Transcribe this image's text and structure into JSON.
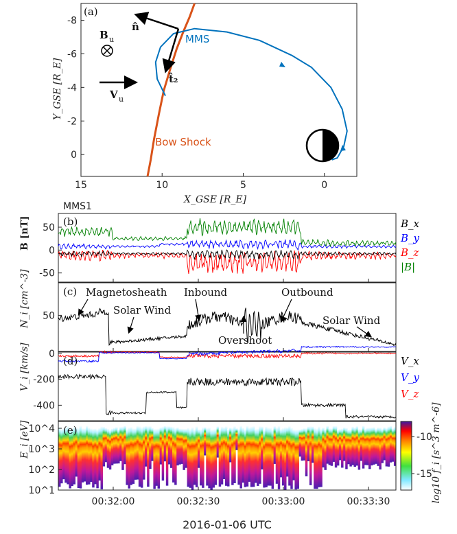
{
  "chart_data": [
    {
      "type": "line",
      "panel_label": "(a)",
      "xlabel": "X_GSE [R_E]",
      "ylabel": "Y_GSE [R_E]",
      "xlim": [
        15,
        -2
      ],
      "ylim": [
        1.3,
        -9
      ],
      "x_ticks": [
        15,
        10,
        5,
        0
      ],
      "y_ticks": [
        -8,
        -6,
        -4,
        -2,
        0
      ],
      "annotations": {
        "mms": "MMS",
        "bow_shock": "Bow Shock",
        "n_hat": "n̂",
        "t2_hat": "t̂₂",
        "bu": "B",
        "bu_sub": "u",
        "vu": "V",
        "vu_sub": "u"
      },
      "series": [
        {
          "name": "Bow Shock",
          "color": "#d95319",
          "x": [
            8.0,
            8.3,
            8.7,
            9.1,
            9.5,
            9.9,
            10.2,
            10.5,
            10.7,
            10.9
          ],
          "y": [
            -9.0,
            -8.2,
            -7.3,
            -6.3,
            -5.1,
            -3.8,
            -2.4,
            -0.9,
            0.3,
            1.3
          ]
        },
        {
          "name": "MMS",
          "color": "#0072bd",
          "x": [
            9.8,
            10.3,
            10.4,
            10.1,
            9.3,
            8.0,
            6.0,
            4.0,
            2.0,
            0.8,
            -0.4,
            -1.1,
            -1.4,
            -1.2,
            -0.8,
            -0.5,
            -0.3
          ],
          "y": [
            -3.5,
            -4.5,
            -5.5,
            -6.4,
            -7.2,
            -7.5,
            -7.3,
            -6.8,
            -5.9,
            -5.2,
            -4.0,
            -2.7,
            -1.4,
            -0.5,
            0.2,
            0.3,
            0.0
          ]
        }
      ]
    },
    {
      "type": "line",
      "panel_label": "(b)",
      "title": "MMS1",
      "ylabel": "B [nT]",
      "ylim": [
        -70,
        80
      ],
      "y_ticks": [
        -50,
        0,
        50
      ],
      "legend": [
        "B_x",
        "B_y",
        "B_z",
        "|B|"
      ],
      "colors": [
        "#000000",
        "#0000ff",
        "#ff0000",
        "#008000"
      ]
    },
    {
      "type": "line",
      "panel_label": "(c)",
      "ylabel": "N_i [cm^-3]",
      "ylim": [
        0,
        95
      ],
      "y_ticks": [
        50
      ],
      "annotations": [
        "Magnetosheath",
        "Solar Wind",
        "Inbound",
        "Outbound",
        "Overshoot",
        "Solar Wind"
      ]
    },
    {
      "type": "line",
      "panel_label": "(d)",
      "ylabel": "V_i [km/s]",
      "ylim": [
        -520,
        10
      ],
      "y_ticks": [
        -400,
        -200,
        0
      ],
      "legend": [
        "V_x",
        "V_y",
        "V_z"
      ],
      "colors": [
        "#000000",
        "#0000ff",
        "#ff0000"
      ]
    },
    {
      "type": "heatmap",
      "panel_label": "(e)",
      "ylabel": "E_i [eV]",
      "y_scale": "log",
      "y_ticks": [
        "10^1",
        "10^2",
        "10^3",
        "10^4"
      ],
      "x_ticks": [
        "00:32:00",
        "00:32:30",
        "00:33:00",
        "00:33:30"
      ],
      "xlabel": "2016-01-06 UTC",
      "colorbar_label": "log10 f_i [s^3 m^-6]",
      "colorbar_ticks": [
        -10,
        -15
      ]
    }
  ]
}
